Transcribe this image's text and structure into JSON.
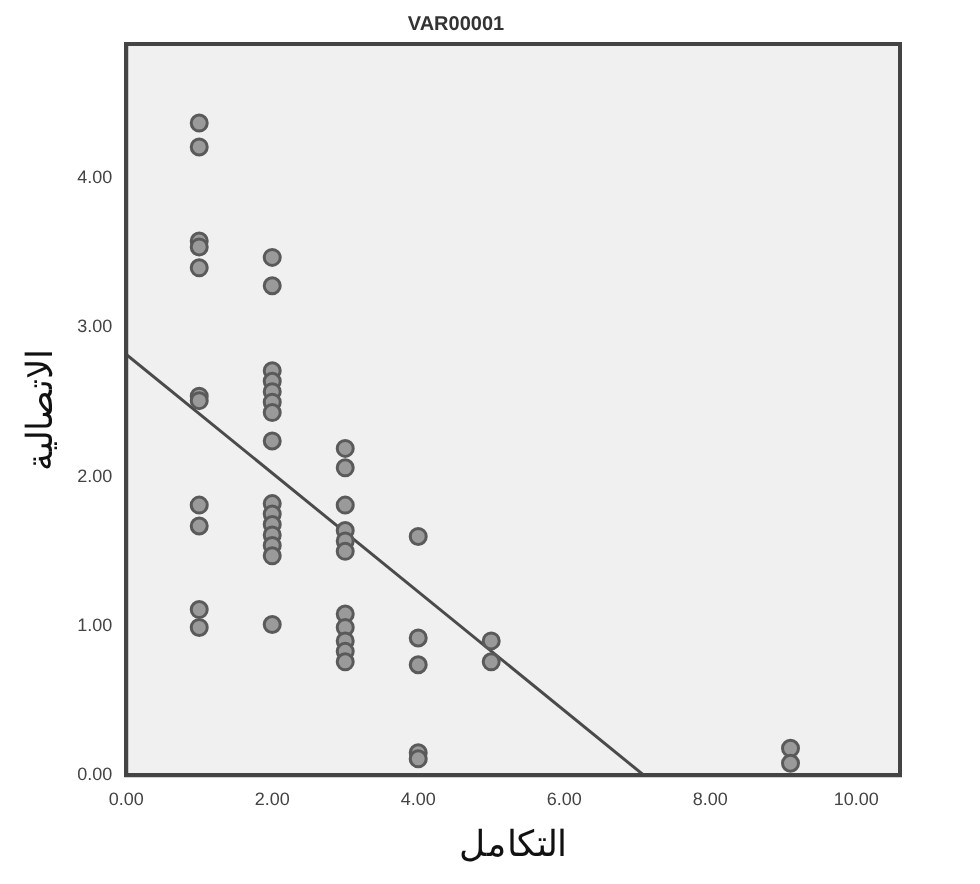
{
  "chart_data": {
    "type": "scatter",
    "title": "VAR00001",
    "xlabel": "التكامل",
    "ylabel": "الاتصالية",
    "xlim": [
      0,
      10.6
    ],
    "xticks": [
      {
        "value": 0,
        "label": "0.00"
      },
      {
        "value": 2,
        "label": "2.00"
      },
      {
        "value": 4,
        "label": "4.00"
      },
      {
        "value": 6,
        "label": "6.00"
      },
      {
        "value": 8,
        "label": "8.00"
      },
      {
        "value": 10,
        "label": "10.00"
      }
    ],
    "ylim": [
      0,
      4.9
    ],
    "yticks": [
      {
        "value": 0,
        "label": "0.00"
      },
      {
        "value": 1,
        "label": "1.00"
      },
      {
        "value": 2,
        "label": "2.00"
      },
      {
        "value": 3,
        "label": "3.00"
      },
      {
        "value": 4,
        "label": "4.00"
      }
    ],
    "grid": false,
    "series": [
      {
        "marker": "circle",
        "color": "#5a5a5a",
        "x": [
          1,
          1,
          1,
          1,
          1,
          1,
          1,
          1,
          1,
          1,
          1,
          2,
          2,
          2,
          2,
          2,
          2,
          2,
          2,
          2,
          2,
          2,
          2,
          2,
          2,
          2,
          3,
          3,
          3,
          3,
          3,
          3,
          3,
          3,
          3,
          3,
          3,
          4,
          4,
          4,
          4,
          4,
          5,
          5,
          9.1,
          9.1
        ],
        "values": [
          4.37,
          4.21,
          3.58,
          3.54,
          3.4,
          2.54,
          2.51,
          1.81,
          1.67,
          1.11,
          0.99,
          3.47,
          3.28,
          2.71,
          2.64,
          2.57,
          2.5,
          2.43,
          2.24,
          1.82,
          1.75,
          1.68,
          1.61,
          1.54,
          1.47,
          1.01,
          2.19,
          2.06,
          1.81,
          1.64,
          1.57,
          1.5,
          1.08,
          0.99,
          0.9,
          0.83,
          0.76,
          1.6,
          0.92,
          0.74,
          0.15,
          0.11,
          0.9,
          0.76,
          0.18,
          0.08
        ]
      },
      {
        "type": "line",
        "color": "#4a4a4a",
        "x": [
          0,
          7.09
        ],
        "values": [
          2.82,
          0
        ]
      }
    ]
  }
}
